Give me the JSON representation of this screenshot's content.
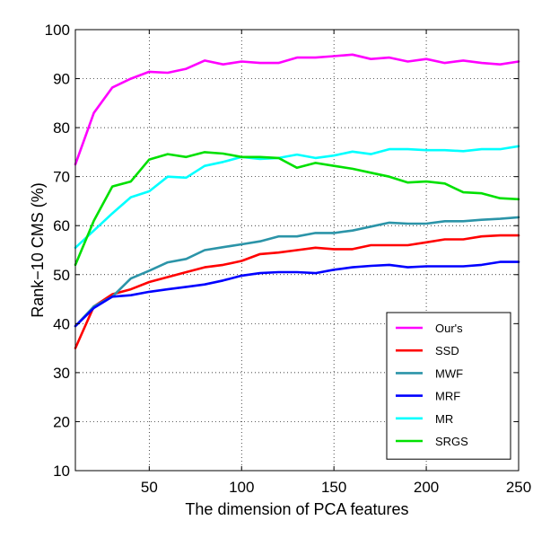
{
  "chart_data": {
    "type": "line",
    "xlabel": "The dimension of PCA features",
    "ylabel": "Rank−10 CMS (%)",
    "xlim": [
      10,
      250
    ],
    "ylim": [
      10,
      100
    ],
    "xticks": [
      50,
      100,
      150,
      200,
      250
    ],
    "yticks": [
      10,
      20,
      30,
      40,
      50,
      60,
      70,
      80,
      90,
      100
    ],
    "grid": true,
    "legend_position": "bottom-right",
    "x": [
      10,
      20,
      30,
      40,
      50,
      60,
      70,
      80,
      90,
      100,
      110,
      120,
      130,
      140,
      150,
      160,
      170,
      180,
      190,
      200,
      210,
      220,
      230,
      240,
      250
    ],
    "series": [
      {
        "name": "Our's",
        "color": "#ff00ff",
        "values": [
          72.5,
          83,
          88.2,
          90,
          91.4,
          91.2,
          92,
          93.7,
          92.9,
          93.5,
          93.2,
          93.2,
          94.3,
          94.3,
          94.6,
          94.9,
          94,
          94.3,
          93.5,
          94,
          93.2,
          93.7,
          93.2,
          92.9,
          93.5
        ]
      },
      {
        "name": "SSD",
        "color": "#ff0000",
        "values": [
          35,
          43.5,
          46,
          47,
          48.5,
          49.5,
          50.5,
          51.5,
          52,
          52.8,
          54.2,
          54.5,
          55,
          55.5,
          55.2,
          55.2,
          56,
          56,
          56,
          56.6,
          57.2,
          57.2,
          57.8,
          58,
          58
        ]
      },
      {
        "name": "MWF",
        "color": "#2b94a8",
        "values": [
          39.5,
          43.5,
          45.5,
          49.2,
          50.8,
          52.5,
          53.2,
          55,
          55.6,
          56.2,
          56.8,
          57.8,
          57.8,
          58.5,
          58.5,
          59,
          59.8,
          60.6,
          60.4,
          60.4,
          60.9,
          60.9,
          61.2,
          61.4,
          61.7
        ]
      },
      {
        "name": "MRF",
        "color": "#0000ff",
        "values": [
          39.5,
          43.2,
          45.5,
          45.8,
          46.5,
          47,
          47.5,
          48,
          48.8,
          49.8,
          50.3,
          50.5,
          50.5,
          50.3,
          51,
          51.5,
          51.8,
          52,
          51.5,
          51.7,
          51.7,
          51.7,
          52,
          52.6,
          52.6
        ]
      },
      {
        "name": "MR",
        "color": "#00ffff",
        "values": [
          55.5,
          59,
          62.5,
          65.8,
          67,
          70,
          69.8,
          72.2,
          73,
          74,
          73.6,
          73.8,
          74.5,
          73.8,
          74.3,
          75.1,
          74.6,
          75.6,
          75.6,
          75.4,
          75.4,
          75.2,
          75.6,
          75.6,
          76.2
        ]
      },
      {
        "name": "SRGS",
        "color": "#00e000",
        "values": [
          52,
          61,
          68,
          69,
          73.5,
          74.6,
          74,
          75,
          74.7,
          74,
          74,
          73.8,
          71.8,
          72.8,
          72.2,
          71.6,
          70.8,
          70,
          68.8,
          69,
          68.6,
          66.8,
          66.6,
          65.6,
          65.4
        ]
      }
    ]
  }
}
